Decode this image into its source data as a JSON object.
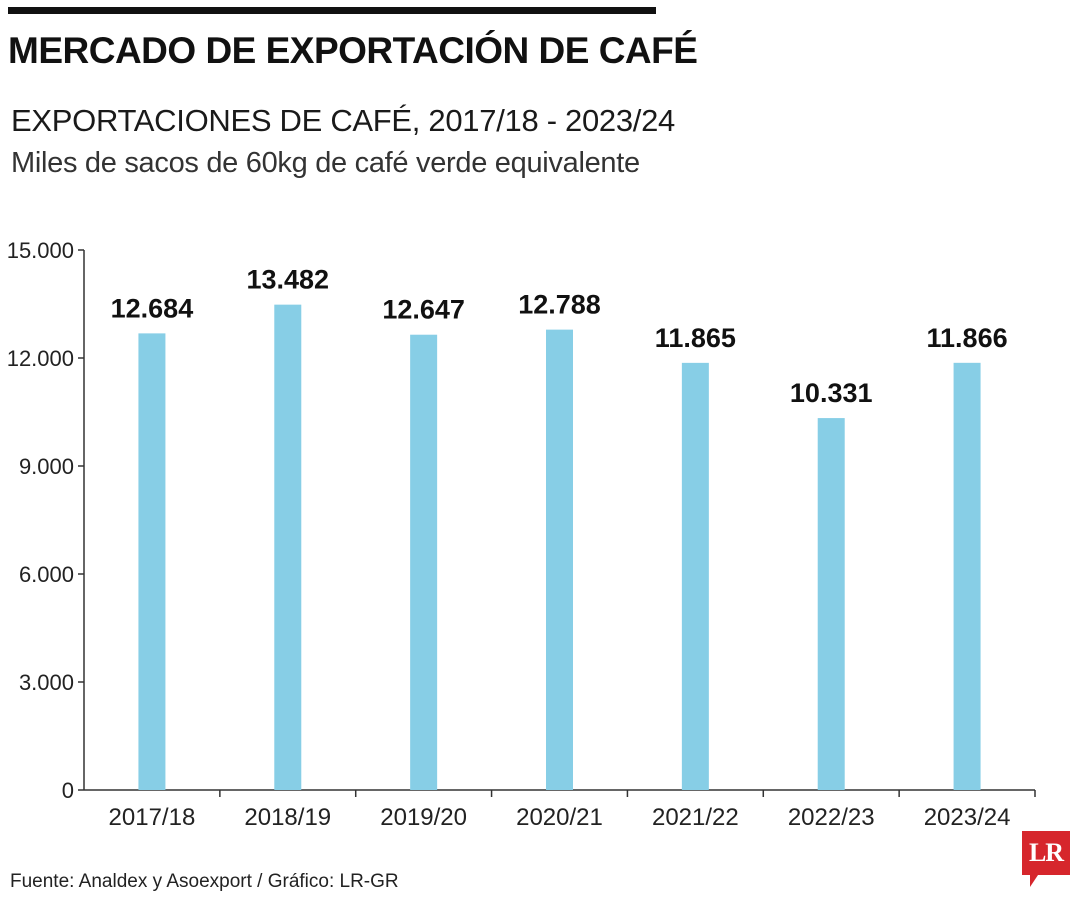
{
  "header": {
    "title": "MERCADO DE EXPORTACIÓN DE CAFÉ"
  },
  "chart_data": {
    "type": "bar",
    "title": "EXPORTACIONES DE CAFÉ, 2017/18 - 2023/24",
    "subtitle": "Miles de sacos de 60kg de café verde equivalente",
    "categories": [
      "2017/18",
      "2018/19",
      "2019/20",
      "2020/21",
      "2021/22",
      "2022/23",
      "2023/24"
    ],
    "values": [
      12684,
      13482,
      12647,
      12788,
      11865,
      10331,
      11866
    ],
    "data_labels": [
      "12.684",
      "13.482",
      "12.647",
      "12.788",
      "11.865",
      "10.331",
      "11.866"
    ],
    "yticks": [
      0,
      3000,
      6000,
      9000,
      12000,
      15000
    ],
    "ytick_labels": [
      "0",
      "3.000",
      "6.000",
      "9.000",
      "12.000",
      "15.000"
    ],
    "ylim": [
      0,
      15000
    ],
    "xlabel": "",
    "ylabel": "",
    "bar_color": "#87cee6",
    "axis_color": "#333333",
    "grid": false,
    "legend": "none"
  },
  "footer": {
    "source": "Fuente: Analdex y Asoexport / Gráfico: LR-GR",
    "logo_text": "LR"
  }
}
